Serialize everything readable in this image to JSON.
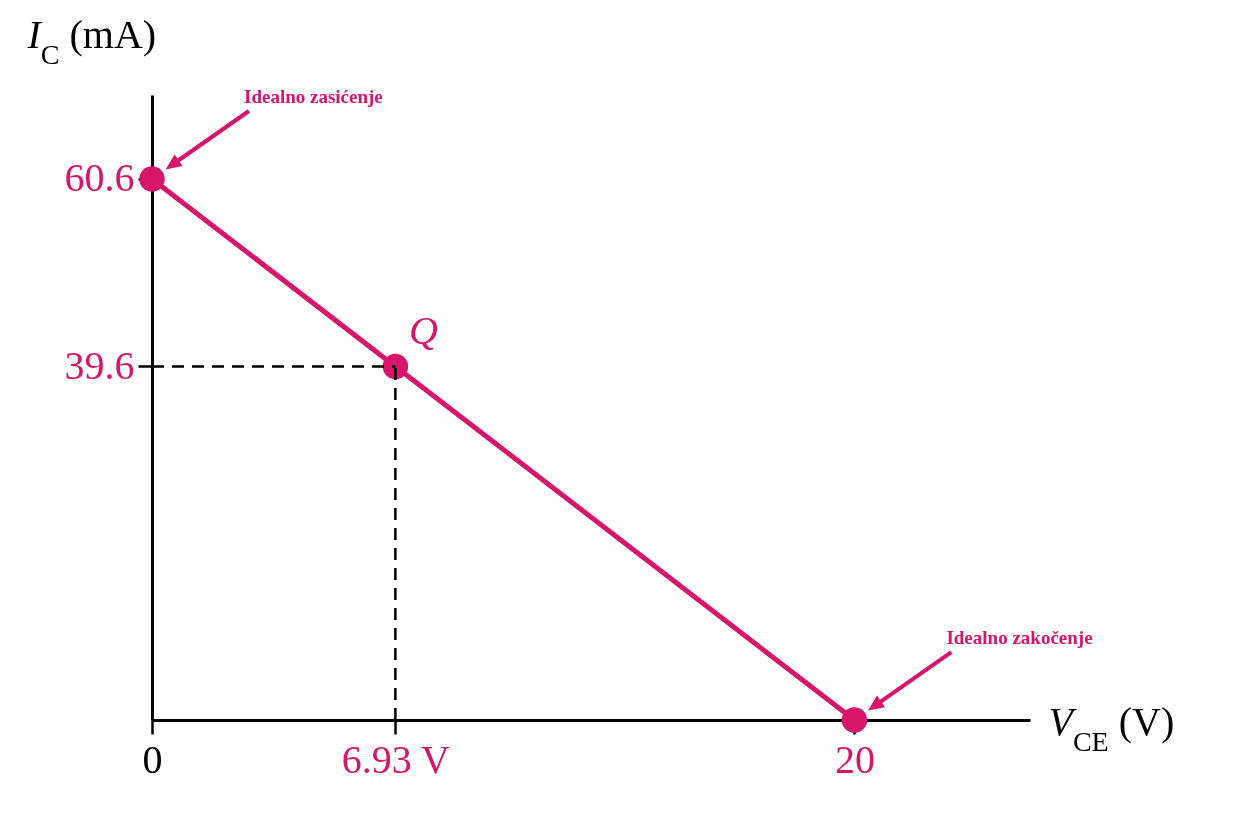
{
  "chart_data": {
    "type": "line",
    "xlabel": "V$_{CE}$ (V)",
    "ylabel": "I$_{C}$ (mA)",
    "x": [
      0,
      6.93,
      20
    ],
    "series": [
      {
        "color": "#d6156b",
        "values": [
          60.6,
          39.6,
          0
        ]
      }
    ],
    "xlim": [
      0,
      25
    ],
    "ylim": [
      0,
      70
    ],
    "xticks": [
      0,
      {
        "value": 6.93,
        "label": "6.93 V"
      },
      20
    ],
    "yticks": [
      39.6,
      60.6
    ],
    "marker": "circle",
    "line_style": "solid",
    "grid": false,
    "ref_lines": [
      {
        "axis": "x",
        "value": 6.93,
        "line_style": "dashed",
        "color": "#000000"
      },
      {
        "axis": "y",
        "value": 39.6,
        "line_style": "dashed",
        "color": "#000000"
      }
    ],
    "annotations": [
      {
        "text": "Q",
        "x": 6.93,
        "y": 39.6
      },
      "Idealno zasićenje",
      "Idealno zakočenje"
    ]
  }
}
